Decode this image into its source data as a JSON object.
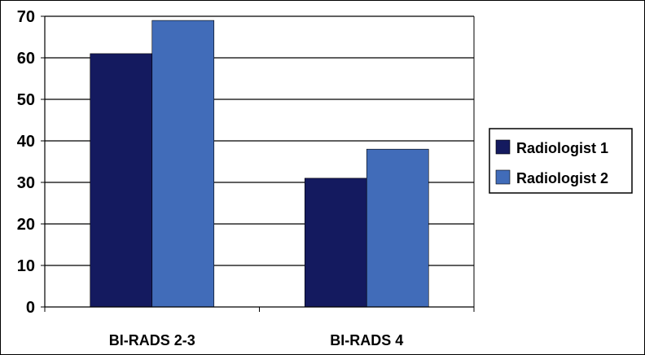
{
  "chart_data": {
    "type": "bar",
    "categories": [
      "BI-RADS 2-3",
      "BI-RADS 4"
    ],
    "series": [
      {
        "name": "Radiologist 1",
        "values": [
          61,
          31
        ],
        "color": "#141a5f"
      },
      {
        "name": "Radiologist 2",
        "values": [
          69,
          38
        ],
        "color": "#416cb9"
      }
    ],
    "title": "",
    "xlabel": "",
    "ylabel": "",
    "ylim": [
      0,
      70
    ],
    "yticks": [
      "0",
      "10",
      "20",
      "30",
      "40",
      "50",
      "60",
      "70"
    ],
    "grid": true,
    "legend_position": "right"
  }
}
